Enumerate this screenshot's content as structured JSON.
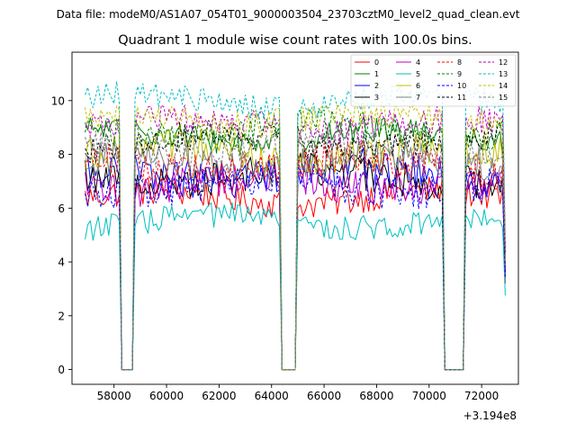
{
  "chart_data": {
    "type": "line",
    "suptitle": "Data file: modeM0/AS1A07_054T01_9000003504_23703cztM0_level2_quad_clean.evt",
    "title": "Quadrant 1 module wise count rates with 100.0s bins.",
    "xlabel": "",
    "ylabel": "",
    "x_offset_label": "+3.194e8",
    "x_offset": 319400000,
    "xlim": [
      56400,
      73400
    ],
    "ylim": [
      -0.55,
      11.8
    ],
    "x_ticks": [
      58000,
      60000,
      62000,
      64000,
      66000,
      68000,
      70000,
      72000
    ],
    "y_ticks": [
      0,
      2,
      4,
      6,
      8,
      10
    ],
    "bin_size_s": 100,
    "x_start": 56900,
    "x_end": 72900,
    "gaps": [
      [
        58300,
        58700
      ],
      [
        64400,
        64900
      ],
      [
        70600,
        71300
      ]
    ],
    "grid": false,
    "legend": {
      "placement": "top-right",
      "columns": 4
    },
    "series": [
      {
        "name": "0",
        "color": "#ff0000",
        "dash": "solid",
        "mean": 6.4,
        "noise": 0.35
      },
      {
        "name": "1",
        "color": "#008000",
        "dash": "solid",
        "mean": 8.7,
        "noise": 0.3
      },
      {
        "name": "2",
        "color": "#0000ff",
        "dash": "solid",
        "mean": 7.3,
        "noise": 0.45
      },
      {
        "name": "3",
        "color": "#000000",
        "dash": "solid",
        "mean": 7.2,
        "noise": 0.4
      },
      {
        "name": "4",
        "color": "#bf00bf",
        "dash": "solid",
        "mean": 6.9,
        "noise": 0.4
      },
      {
        "name": "5",
        "color": "#00bfbf",
        "dash": "solid",
        "mean": 5.5,
        "noise": 0.3
      },
      {
        "name": "6",
        "color": "#bfbf00",
        "dash": "solid",
        "mean": 8.0,
        "noise": 0.4
      },
      {
        "name": "7",
        "color": "#808080",
        "dash": "solid",
        "mean": 7.7,
        "noise": 0.4
      },
      {
        "name": "8",
        "color": "#ff0000",
        "dash": "dashed",
        "mean": 7.6,
        "noise": 0.4
      },
      {
        "name": "9",
        "color": "#008000",
        "dash": "dashed",
        "mean": 8.9,
        "noise": 0.35
      },
      {
        "name": "10",
        "color": "#0000ff",
        "dash": "dashed",
        "mean": 6.8,
        "noise": 0.4
      },
      {
        "name": "11",
        "color": "#000000",
        "dash": "dashed",
        "mean": 8.5,
        "noise": 0.35
      },
      {
        "name": "12",
        "color": "#bf00bf",
        "dash": "dashed",
        "mean": 9.1,
        "noise": 0.35
      },
      {
        "name": "13",
        "color": "#00bfbf",
        "dash": "dashed",
        "mean": 10.0,
        "noise": 0.3
      },
      {
        "name": "14",
        "color": "#bfbf00",
        "dash": "dashed",
        "mean": 9.3,
        "noise": 0.35
      },
      {
        "name": "15",
        "color": "#808080",
        "dash": "dashed",
        "mean": 8.2,
        "noise": 0.35
      }
    ]
  }
}
